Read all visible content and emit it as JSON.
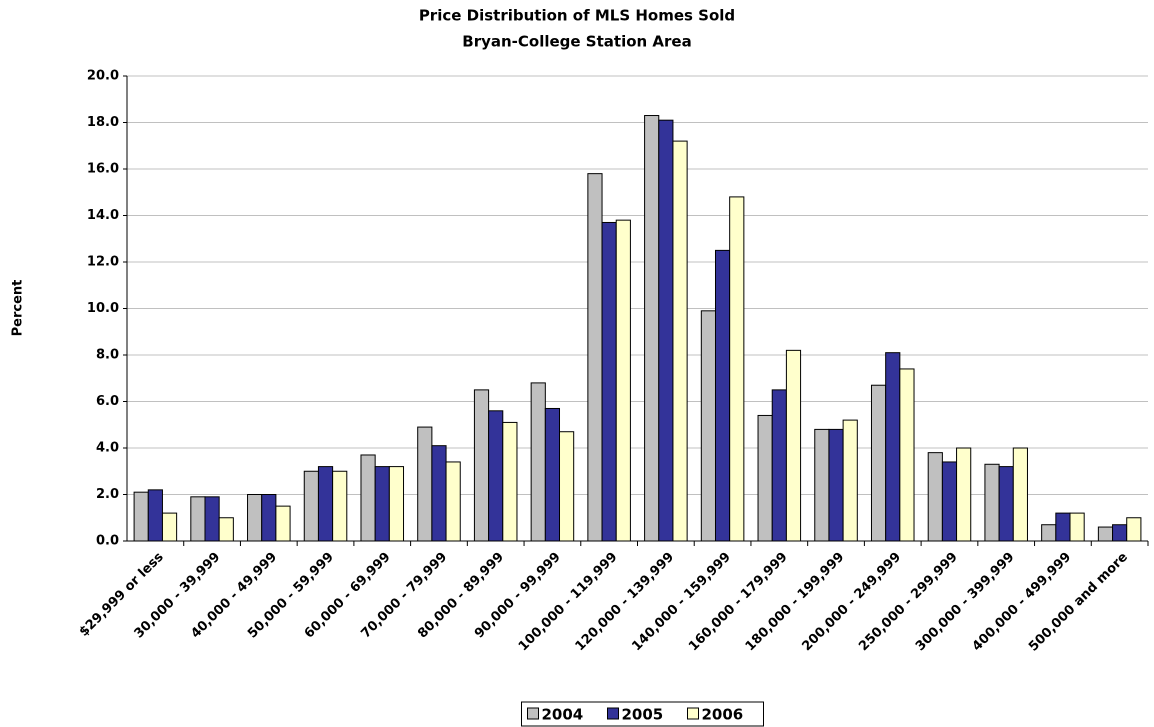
{
  "chart_data": {
    "type": "bar",
    "title": "Price Distribution of MLS Homes Sold",
    "subtitle": "Bryan-College Station Area",
    "y_label": "Percent",
    "categories": [
      "$29,999 or less",
      "30,000 - 39,999",
      "40,000 - 49,999",
      "50,000 - 59,999",
      "60,000 - 69,999",
      "70,000 - 79,999",
      "80,000 - 89,999",
      "90,000 - 99,999",
      "100,000 - 119,999",
      "120,000 - 139,999",
      "140,000 - 159,999",
      "160,000 - 179,999",
      "180,000 - 199,999",
      "200,000 - 249,999",
      "250,000 - 299,999",
      "300,000 - 399,999",
      "400,000 - 499,999",
      "500,000 and more"
    ],
    "series": [
      {
        "name": "2004",
        "color": "#c0c0c0",
        "values": [
          2.1,
          1.9,
          2.0,
          3.0,
          3.7,
          4.9,
          6.5,
          6.8,
          15.8,
          18.3,
          9.9,
          5.4,
          4.8,
          6.7,
          3.8,
          3.3,
          0.7,
          0.6
        ]
      },
      {
        "name": "2005",
        "color": "#333399",
        "values": [
          2.2,
          1.9,
          2.0,
          3.2,
          3.2,
          4.1,
          5.6,
          5.7,
          13.7,
          18.1,
          12.5,
          6.5,
          4.8,
          8.1,
          3.4,
          3.2,
          1.2,
          0.7
        ]
      },
      {
        "name": "2006",
        "color": "#ffffcc",
        "values": [
          1.2,
          1.0,
          1.5,
          3.0,
          3.2,
          3.4,
          5.1,
          4.7,
          13.8,
          17.2,
          14.8,
          8.2,
          5.2,
          7.4,
          4.0,
          4.0,
          1.2,
          1.0
        ]
      }
    ],
    "ylim": [
      0,
      20
    ],
    "yticks": [
      {
        "value": 0,
        "label": "0.0"
      },
      {
        "value": 2,
        "label": "2.0"
      },
      {
        "value": 4,
        "label": "4.0"
      },
      {
        "value": 6,
        "label": "6.0"
      },
      {
        "value": 8,
        "label": "8.0"
      },
      {
        "value": 10,
        "label": "10.0"
      },
      {
        "value": 12,
        "label": "12.0"
      },
      {
        "value": 14,
        "label": "14.0"
      },
      {
        "value": 16,
        "label": "16.0"
      },
      {
        "value": 18,
        "label": "18.0"
      },
      {
        "value": 20,
        "label": "20.0"
      }
    ],
    "grid": true,
    "legend": "bottom"
  }
}
